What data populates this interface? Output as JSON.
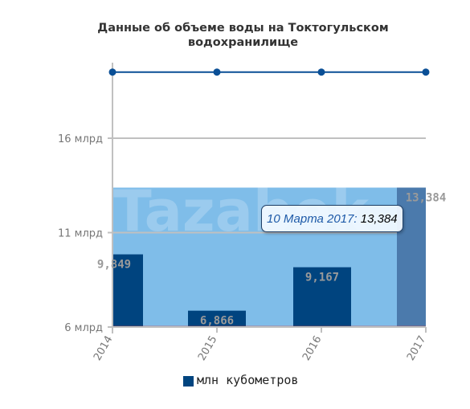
{
  "chart_data": {
    "type": "bar",
    "title": "Данные об объеме воды на Токтогульском водохранилище",
    "title_lines": [
      "Данные об объеме воды на Токтогульском",
      "водохранилище"
    ],
    "categories": [
      "2014",
      "2015",
      "2016",
      "2017"
    ],
    "series": [
      {
        "name": "млн кубометров",
        "values": [
          9849,
          6866,
          9167,
          13384
        ],
        "labels": [
          "9,849",
          "6,866",
          "9,167",
          "13,384"
        ],
        "color": "#00447f"
      }
    ],
    "line_series": {
      "values": [
        19500,
        19500,
        19500,
        19500
      ],
      "color": "#0a4f96"
    },
    "reference_line": {
      "value": 6000,
      "color": "#e03c3c"
    },
    "y_axis": {
      "ticks": [
        6000,
        11000,
        16000
      ],
      "tick_labels": [
        "6 млрд",
        "11 млрд",
        "16 млрд"
      ],
      "range": [
        6000,
        20000
      ]
    },
    "x_axis": {
      "tick_labels": [
        "2014",
        "2015",
        "2016",
        "2017"
      ]
    },
    "highlight_band": {
      "y_top": 13384,
      "color": "#7fbde9"
    },
    "hovered_bar": {
      "index": 3,
      "color": "#4b7aac"
    },
    "watermark": "Tazabek",
    "tooltip": {
      "label": "10 Марта 2017:",
      "value": "13,384"
    },
    "legend_placement": "bottom",
    "grid": true,
    "colors": {
      "axis": "#c0c0c0",
      "tick_text": "#777777",
      "bar_label": "#9a9a9a",
      "title": "#333333"
    }
  }
}
